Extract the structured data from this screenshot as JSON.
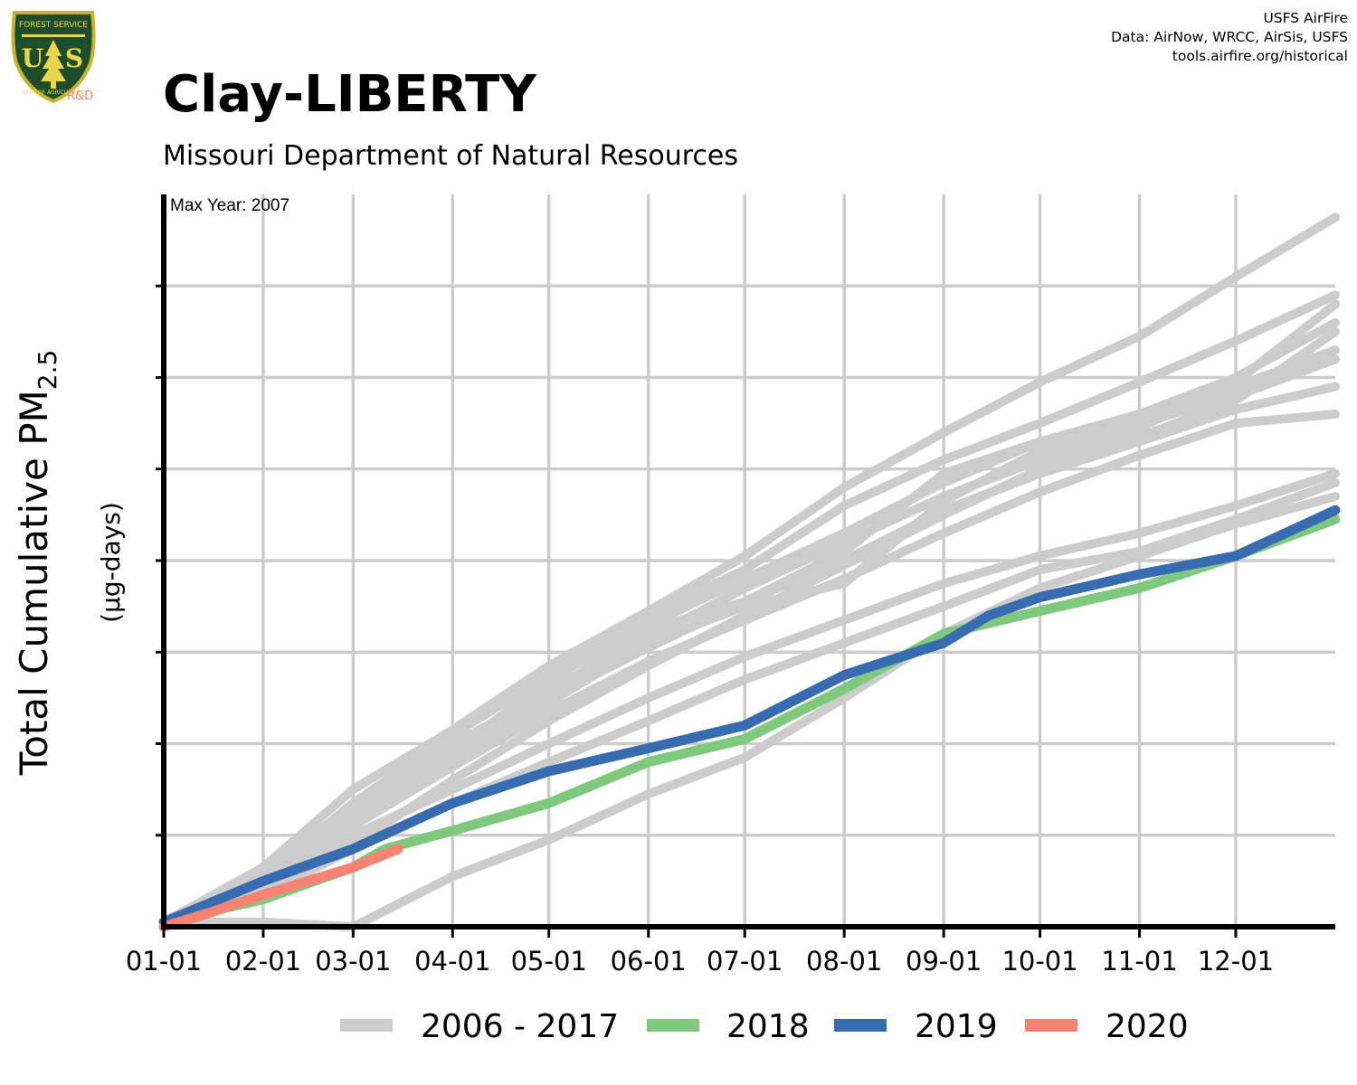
{
  "credits": {
    "line1": "USFS AirFire",
    "line2": "Data: AirNow, WRCC, AirSis, USFS",
    "line3": "tools.airfire.org/historical"
  },
  "logo": {
    "icon": "usfs-shield-logo",
    "badge_text": "R&D"
  },
  "colors": {
    "history": "#cccccc",
    "y2018": "#7fc97f",
    "y2019": "#386cb0",
    "y2020": "#f98372"
  },
  "chart_data": {
    "type": "line",
    "title": "Clay-LIBERTY",
    "subtitle": "Missouri Department of Natural Resources",
    "annotation": "Max Year: 2007",
    "ylabel_main": "Total Cumulative PM",
    "ylabel_sub": "2.5",
    "ylabel_units": "(µg-days)",
    "x_ticks": [
      "01-01",
      "02-01",
      "03-01",
      "04-01",
      "05-01",
      "06-01",
      "07-01",
      "08-01",
      "09-01",
      "10-01",
      "11-01",
      "12-01"
    ],
    "x_tick_days": [
      1,
      32,
      60,
      91,
      121,
      152,
      182,
      213,
      244,
      274,
      305,
      335
    ],
    "xlim": [
      1,
      366
    ],
    "ylim": [
      0,
      8
    ],
    "y_gridlines": [
      1,
      2,
      3,
      4,
      5,
      6,
      7
    ],
    "grid": true,
    "legend_position": "bottom",
    "legend": [
      {
        "label": "2006 - 2017",
        "color": "#cccccc"
      },
      {
        "label": "2018",
        "color": "#7fc97f"
      },
      {
        "label": "2019",
        "color": "#386cb0"
      },
      {
        "label": "2020",
        "color": "#f98372"
      }
    ],
    "series": [
      {
        "group": "2006 - 2017",
        "points": [
          [
            1,
            0.05
          ],
          [
            32,
            0.55
          ],
          [
            60,
            1.35
          ],
          [
            91,
            2.1
          ],
          [
            121,
            2.75
          ],
          [
            152,
            3.4
          ],
          [
            182,
            3.9
          ],
          [
            213,
            4.6
          ],
          [
            244,
            5.1
          ],
          [
            274,
            5.5
          ],
          [
            305,
            5.95
          ],
          [
            335,
            6.4
          ],
          [
            366,
            6.9
          ]
        ]
      },
      {
        "group": "2006 - 2017",
        "points": [
          [
            1,
            0.05
          ],
          [
            32,
            0.6
          ],
          [
            60,
            1.2
          ],
          [
            91,
            1.9
          ],
          [
            121,
            2.7
          ],
          [
            152,
            3.3
          ],
          [
            182,
            3.8
          ],
          [
            213,
            4.3
          ],
          [
            244,
            4.85
          ],
          [
            274,
            5.3
          ],
          [
            305,
            5.6
          ],
          [
            335,
            6.0
          ],
          [
            366,
            6.6
          ]
        ]
      },
      {
        "group": "2006 - 2017",
        "points": [
          [
            1,
            0.05
          ],
          [
            32,
            0.55
          ],
          [
            60,
            1.25
          ],
          [
            91,
            1.95
          ],
          [
            121,
            2.6
          ],
          [
            152,
            3.15
          ],
          [
            182,
            3.7
          ],
          [
            213,
            4.2
          ],
          [
            244,
            4.7
          ],
          [
            274,
            5.1
          ],
          [
            305,
            5.45
          ],
          [
            335,
            5.95
          ],
          [
            366,
            6.8
          ]
        ]
      },
      {
        "group": "2006 - 2017",
        "points": [
          [
            1,
            0.05
          ],
          [
            32,
            0.5
          ],
          [
            60,
            1.3
          ],
          [
            91,
            2.0
          ],
          [
            121,
            2.55
          ],
          [
            152,
            3.25
          ],
          [
            182,
            3.55
          ],
          [
            213,
            4.1
          ],
          [
            244,
            4.95
          ],
          [
            274,
            5.3
          ],
          [
            305,
            5.55
          ],
          [
            335,
            5.9
          ],
          [
            366,
            6.3
          ]
        ]
      },
      {
        "group": "2006 - 2017",
        "points": [
          [
            1,
            0.05
          ],
          [
            32,
            0.65
          ],
          [
            60,
            1.5
          ],
          [
            91,
            2.15
          ],
          [
            121,
            2.85
          ],
          [
            152,
            3.45
          ],
          [
            182,
            4.05
          ],
          [
            213,
            4.8
          ],
          [
            244,
            5.4
          ],
          [
            274,
            5.95
          ],
          [
            305,
            6.45
          ],
          [
            335,
            7.1
          ],
          [
            366,
            7.75
          ]
        ]
      },
      {
        "group": "2006 - 2017",
        "points": [
          [
            1,
            0.05
          ],
          [
            32,
            0.55
          ],
          [
            60,
            1.2
          ],
          [
            91,
            1.85
          ],
          [
            121,
            2.45
          ],
          [
            152,
            3.1
          ],
          [
            182,
            3.5
          ],
          [
            213,
            3.75
          ],
          [
            244,
            4.65
          ],
          [
            274,
            5.2
          ],
          [
            305,
            5.5
          ],
          [
            335,
            5.8
          ],
          [
            366,
            6.2
          ]
        ]
      },
      {
        "group": "2006 - 2017",
        "points": [
          [
            1,
            0.05
          ],
          [
            32,
            0.5
          ],
          [
            60,
            1.15
          ],
          [
            91,
            1.85
          ],
          [
            121,
            2.5
          ],
          [
            152,
            3.05
          ],
          [
            182,
            3.55
          ],
          [
            213,
            4.0
          ],
          [
            244,
            4.55
          ],
          [
            274,
            4.95
          ],
          [
            305,
            5.3
          ],
          [
            335,
            5.65
          ],
          [
            366,
            5.9
          ]
        ]
      },
      {
        "group": "2006 - 2017",
        "points": [
          [
            1,
            0.05
          ],
          [
            32,
            0.45
          ],
          [
            60,
            1.1
          ],
          [
            91,
            1.75
          ],
          [
            121,
            2.35
          ],
          [
            152,
            2.9
          ],
          [
            182,
            3.35
          ],
          [
            213,
            3.8
          ],
          [
            244,
            4.3
          ],
          [
            274,
            4.75
          ],
          [
            305,
            5.15
          ],
          [
            335,
            5.5
          ],
          [
            366,
            5.6
          ]
        ]
      },
      {
        "group": "2006 - 2017",
        "points": [
          [
            1,
            0.05
          ],
          [
            32,
            0.4
          ],
          [
            60,
            0.9
          ],
          [
            91,
            1.6
          ],
          [
            121,
            2.25
          ],
          [
            152,
            2.85
          ],
          [
            182,
            3.4
          ],
          [
            213,
            3.95
          ],
          [
            244,
            4.5
          ],
          [
            274,
            5.0
          ],
          [
            305,
            5.35
          ],
          [
            335,
            5.75
          ],
          [
            366,
            6.5
          ]
        ]
      },
      {
        "group": "2006 - 2017",
        "points": [
          [
            1,
            0.05
          ],
          [
            32,
            0.45
          ],
          [
            60,
            1.0
          ],
          [
            91,
            1.5
          ],
          [
            121,
            2.0
          ],
          [
            152,
            2.5
          ],
          [
            182,
            2.95
          ],
          [
            213,
            3.35
          ],
          [
            244,
            3.75
          ],
          [
            274,
            4.05
          ],
          [
            305,
            4.3
          ],
          [
            335,
            4.6
          ],
          [
            366,
            4.95
          ]
        ]
      },
      {
        "group": "2006 - 2017",
        "points": [
          [
            1,
            0.05
          ],
          [
            32,
            0.35
          ],
          [
            60,
            0.85
          ],
          [
            91,
            1.35
          ],
          [
            121,
            1.8
          ],
          [
            152,
            2.25
          ],
          [
            182,
            2.7
          ],
          [
            213,
            3.1
          ],
          [
            244,
            3.5
          ],
          [
            274,
            3.9
          ],
          [
            305,
            4.1
          ],
          [
            335,
            4.45
          ],
          [
            366,
            4.85
          ]
        ]
      },
      {
        "group": "2006 - 2017",
        "points": [
          [
            1,
            0.05
          ],
          [
            32,
            0.05
          ],
          [
            60,
            0.0
          ],
          [
            91,
            0.55
          ],
          [
            121,
            0.95
          ],
          [
            152,
            1.45
          ],
          [
            182,
            1.85
          ],
          [
            213,
            2.5
          ],
          [
            244,
            3.2
          ],
          [
            274,
            3.7
          ],
          [
            305,
            4.05
          ],
          [
            335,
            4.4
          ],
          [
            366,
            4.7
          ]
        ]
      },
      {
        "name": "2018",
        "points": [
          [
            1,
            0.05
          ],
          [
            32,
            0.3
          ],
          [
            60,
            0.65
          ],
          [
            70,
            0.85
          ],
          [
            91,
            1.05
          ],
          [
            121,
            1.35
          ],
          [
            152,
            1.8
          ],
          [
            182,
            2.05
          ],
          [
            213,
            2.6
          ],
          [
            244,
            3.2
          ],
          [
            274,
            3.45
          ],
          [
            305,
            3.7
          ],
          [
            335,
            4.05
          ],
          [
            366,
            4.45
          ]
        ]
      },
      {
        "name": "2019",
        "points": [
          [
            1,
            0.05
          ],
          [
            32,
            0.5
          ],
          [
            60,
            0.85
          ],
          [
            91,
            1.35
          ],
          [
            121,
            1.7
          ],
          [
            152,
            1.95
          ],
          [
            182,
            2.2
          ],
          [
            213,
            2.75
          ],
          [
            244,
            3.1
          ],
          [
            258,
            3.4
          ],
          [
            274,
            3.6
          ],
          [
            305,
            3.85
          ],
          [
            335,
            4.05
          ],
          [
            366,
            4.55
          ]
        ]
      },
      {
        "name": "2020",
        "points": [
          [
            1,
            0.0
          ],
          [
            15,
            0.15
          ],
          [
            32,
            0.35
          ],
          [
            46,
            0.5
          ],
          [
            60,
            0.65
          ],
          [
            74,
            0.85
          ]
        ]
      }
    ]
  }
}
